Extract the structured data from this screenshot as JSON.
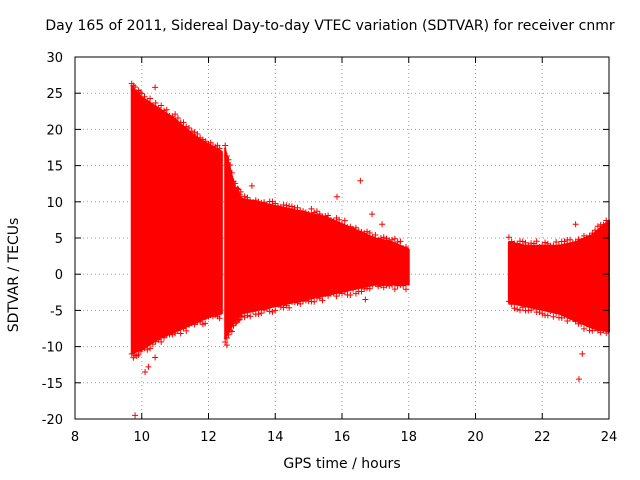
{
  "chart_data": {
    "type": "scatter",
    "title": "Day 165 of 2011, Sidereal Day-to-day VTEC variation (SDTVAR) for receiver cnmr",
    "xlabel": "GPS time / hours",
    "ylabel": "SDTVAR / TECUs",
    "xlim": [
      8,
      24
    ],
    "ylim": [
      -20,
      30
    ],
    "xticks": [
      8,
      10,
      12,
      14,
      16,
      18,
      20,
      22,
      24
    ],
    "yticks": [
      -20,
      -15,
      -10,
      -5,
      0,
      5,
      10,
      15,
      20,
      25,
      30
    ],
    "grid": true,
    "series_color": "#ff0000",
    "envelope_segments": [
      {
        "name": "segment-1",
        "points": [
          {
            "x": 9.7,
            "upper": 26.0,
            "lower": -11.0
          },
          {
            "x": 10.0,
            "upper": 24.5,
            "lower": -10.5
          },
          {
            "x": 10.5,
            "upper": 23.0,
            "lower": -9.0
          },
          {
            "x": 11.0,
            "upper": 21.5,
            "lower": -8.0
          },
          {
            "x": 11.5,
            "upper": 19.5,
            "lower": -7.0
          },
          {
            "x": 12.0,
            "upper": 18.0,
            "lower": -6.0
          },
          {
            "x": 12.4,
            "upper": 17.0,
            "lower": -5.5
          }
        ]
      },
      {
        "name": "segment-2",
        "points": [
          {
            "x": 12.5,
            "upper": 17.5,
            "lower": -9.0
          },
          {
            "x": 12.8,
            "upper": 12.0,
            "lower": -6.5
          },
          {
            "x": 13.0,
            "upper": 10.5,
            "lower": -5.5
          },
          {
            "x": 13.5,
            "upper": 10.0,
            "lower": -5.0
          },
          {
            "x": 14.0,
            "upper": 9.5,
            "lower": -4.5
          },
          {
            "x": 14.5,
            "upper": 9.0,
            "lower": -4.0
          },
          {
            "x": 15.0,
            "upper": 8.5,
            "lower": -3.5
          },
          {
            "x": 15.5,
            "upper": 8.0,
            "lower": -3.0
          },
          {
            "x": 16.0,
            "upper": 7.0,
            "lower": -2.5
          },
          {
            "x": 16.5,
            "upper": 6.0,
            "lower": -2.0
          },
          {
            "x": 17.0,
            "upper": 5.0,
            "lower": -1.5
          },
          {
            "x": 17.5,
            "upper": 4.5,
            "lower": -1.5
          },
          {
            "x": 18.0,
            "upper": 3.5,
            "lower": -1.5
          }
        ]
      },
      {
        "name": "segment-3",
        "points": [
          {
            "x": 21.0,
            "upper": 4.5,
            "lower": -4.0
          },
          {
            "x": 21.5,
            "upper": 4.0,
            "lower": -4.5
          },
          {
            "x": 22.0,
            "upper": 4.0,
            "lower": -5.0
          },
          {
            "x": 22.5,
            "upper": 4.0,
            "lower": -5.5
          },
          {
            "x": 23.0,
            "upper": 4.5,
            "lower": -6.5
          },
          {
            "x": 23.5,
            "upper": 5.5,
            "lower": -7.5
          },
          {
            "x": 24.0,
            "upper": 7.5,
            "lower": -8.0
          }
        ]
      }
    ],
    "outlier_points": [
      {
        "x": 9.8,
        "y": -19.5
      },
      {
        "x": 10.1,
        "y": -13.5
      },
      {
        "x": 10.2,
        "y": -12.8
      },
      {
        "x": 10.4,
        "y": -11.5
      },
      {
        "x": 11.9,
        "y": -6.8
      },
      {
        "x": 12.55,
        "y": -9.8
      },
      {
        "x": 15.85,
        "y": 10.7
      },
      {
        "x": 16.55,
        "y": 12.9
      },
      {
        "x": 16.9,
        "y": 8.3
      },
      {
        "x": 17.2,
        "y": 6.9
      },
      {
        "x": 10.4,
        "y": 25.8
      },
      {
        "x": 12.8,
        "y": 12.0
      },
      {
        "x": 13.3,
        "y": 12.2
      },
      {
        "x": 16.7,
        "y": -3.5
      },
      {
        "x": 23.0,
        "y": 6.9
      },
      {
        "x": 23.1,
        "y": -14.5
      },
      {
        "x": 23.2,
        "y": -11.0
      }
    ]
  }
}
